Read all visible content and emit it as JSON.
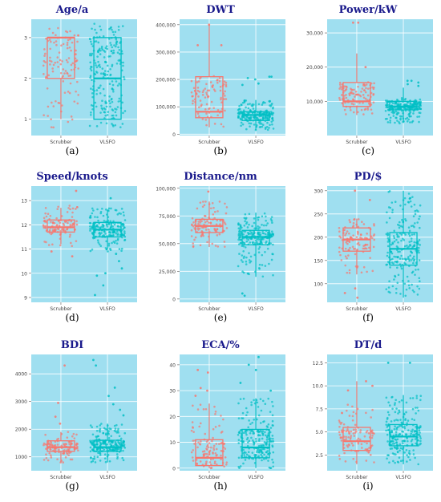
{
  "colors": {
    "panel_bg": "#9fdff0",
    "grid": "#ffffff",
    "scrubber": "#f8766d",
    "vlsfo": "#00bfc4",
    "title": "#1a1a8c"
  },
  "chart_data": [
    {
      "type": "box",
      "title": "Age/a",
      "caption": "(a)",
      "categories": [
        "Scrubber",
        "VLSFO"
      ],
      "ylim": [
        0.6,
        3.45
      ],
      "yticks": [
        1,
        2,
        3
      ],
      "ytick_labels": [
        "1",
        "2",
        "3"
      ],
      "series": [
        {
          "name": "Scrubber",
          "q1": 2.0,
          "median": 3.0,
          "q3": 3.0,
          "min": 1.0,
          "max": 3.0,
          "jitter_range": [
            0.8,
            3.35
          ],
          "n": 110,
          "outliers": []
        },
        {
          "name": "VLSFO",
          "q1": 1.0,
          "median": 2.0,
          "q3": 3.0,
          "min": 1.0,
          "max": 3.0,
          "jitter_range": [
            0.8,
            3.35
          ],
          "n": 220,
          "outliers": []
        }
      ]
    },
    {
      "type": "box",
      "title": "DWT",
      "caption": "(b)",
      "categories": [
        "Scrubber",
        "VLSFO"
      ],
      "ylim": [
        -5000,
        420000
      ],
      "yticks": [
        0,
        100000,
        200000,
        300000,
        400000
      ],
      "ytick_labels": [
        "0",
        "100,000",
        "200,000",
        "300,000",
        "400,000"
      ],
      "series": [
        {
          "name": "Scrubber",
          "q1": 60000,
          "median": 82000,
          "q3": 210000,
          "min": 25000,
          "max": 400000,
          "jitter_range": [
            25000,
            215000
          ],
          "n": 90,
          "outliers": [
            325000,
            325000,
            400000
          ]
        },
        {
          "name": "VLSFO",
          "q1": 50000,
          "median": 70000,
          "q3": 82000,
          "min": 15000,
          "max": 125000,
          "jitter_range": [
            15000,
            125000
          ],
          "n": 200,
          "outliers": [
            180000,
            185000,
            205000,
            210000,
            210000,
            200000
          ]
        }
      ]
    },
    {
      "type": "box",
      "title": "Power/kW",
      "caption": "(c)",
      "categories": [
        "Scrubber",
        "VLSFO"
      ],
      "ylim": [
        0,
        34000
      ],
      "yticks": [
        10000,
        20000,
        30000
      ],
      "ytick_labels": [
        "10,000",
        "20,000",
        "30,000"
      ],
      "series": [
        {
          "name": "Scrubber",
          "q1": 8500,
          "median": 10000,
          "q3": 15500,
          "min": 6000,
          "max": 24000,
          "jitter_range": [
            6000,
            16000
          ],
          "n": 110,
          "outliers": [
            33000,
            33000,
            20000
          ]
        },
        {
          "name": "VLSFO",
          "q1": 7500,
          "median": 8500,
          "q3": 10000,
          "min": 4000,
          "max": 14000,
          "jitter_range": [
            3500,
            11000
          ],
          "n": 220,
          "outliers": [
            15000,
            16000,
            16000,
            14500,
            15500
          ]
        }
      ]
    },
    {
      "type": "box",
      "title": "Speed/knots",
      "caption": "(d)",
      "categories": [
        "Scrubber",
        "VLSFO"
      ],
      "ylim": [
        8.8,
        13.6
      ],
      "yticks": [
        9,
        10,
        11,
        12,
        13
      ],
      "ytick_labels": [
        "9",
        "10",
        "11",
        "12",
        "13"
      ],
      "series": [
        {
          "name": "Scrubber",
          "q1": 11.7,
          "median": 11.9,
          "q3": 12.2,
          "min": 11.2,
          "max": 12.7,
          "jitter_range": [
            11.1,
            12.8
          ],
          "n": 110,
          "outliers": [
            13.4,
            10.9,
            10.7
          ]
        },
        {
          "name": "VLSFO",
          "q1": 11.5,
          "median": 11.8,
          "q3": 12.1,
          "min": 11.0,
          "max": 12.6,
          "jitter_range": [
            10.9,
            12.7
          ],
          "n": 200,
          "outliers": [
            13.1,
            10.5,
            10.2,
            9.9,
            9.5,
            9.1,
            10.8,
            10.0
          ]
        }
      ]
    },
    {
      "type": "box",
      "title": "Distance/nm",
      "caption": "(e)",
      "categories": [
        "Scrubber",
        "VLSFO"
      ],
      "ylim": [
        -3000,
        102000
      ],
      "yticks": [
        0,
        25000,
        50000,
        75000,
        100000
      ],
      "ytick_labels": [
        "0",
        "25,000",
        "50,000",
        "75,000",
        "100,000"
      ],
      "series": [
        {
          "name": "Scrubber",
          "q1": 60000,
          "median": 66000,
          "q3": 72000,
          "min": 47000,
          "max": 88000,
          "jitter_range": [
            47000,
            88000
          ],
          "n": 110,
          "outliers": [
            97000
          ]
        },
        {
          "name": "VLSFO",
          "q1": 49000,
          "median": 56000,
          "q3": 62000,
          "min": 20000,
          "max": 78000,
          "jitter_range": [
            20000,
            78000
          ],
          "n": 220,
          "outliers": [
            5000,
            3000
          ]
        }
      ]
    },
    {
      "type": "box",
      "title": "PD/$",
      "caption": "(f)",
      "categories": [
        "Scrubber",
        "VLSFO"
      ],
      "ylim": [
        60,
        310
      ],
      "yticks": [
        100,
        150,
        200,
        250,
        300
      ],
      "ytick_labels": [
        "100",
        "150",
        "200",
        "250",
        "300"
      ],
      "series": [
        {
          "name": "Scrubber",
          "q1": 170,
          "median": 195,
          "q3": 220,
          "min": 120,
          "max": 240,
          "jitter_range": [
            120,
            240
          ],
          "n": 110,
          "outliers": [
            300,
            280,
            90,
            80,
            70
          ]
        },
        {
          "name": "VLSFO",
          "q1": 140,
          "median": 175,
          "q3": 210,
          "min": 70,
          "max": 300,
          "jitter_range": [
            70,
            300
          ],
          "n": 220,
          "outliers": []
        }
      ]
    },
    {
      "type": "box",
      "title": "BDI",
      "caption": "(g)",
      "categories": [
        "Scrubber",
        "VLSFO"
      ],
      "ylim": [
        500,
        4700
      ],
      "yticks": [
        1000,
        2000,
        3000,
        4000
      ],
      "ytick_labels": [
        "1000",
        "2000",
        "3000",
        "4000"
      ],
      "series": [
        {
          "name": "Scrubber",
          "q1": 1200,
          "median": 1350,
          "q3": 1580,
          "min": 800,
          "max": 1900,
          "jitter_range": [
            800,
            1900
          ],
          "n": 110,
          "outliers": [
            4300,
            2950,
            2450,
            2200
          ]
        },
        {
          "name": "VLSFO",
          "q1": 1200,
          "median": 1350,
          "q3": 1600,
          "min": 800,
          "max": 2200,
          "jitter_range": [
            800,
            2200
          ],
          "n": 220,
          "outliers": [
            4500,
            4300,
            3500,
            3200,
            2900,
            2700,
            2500
          ]
        }
      ]
    },
    {
      "type": "box",
      "title": "ECA/%",
      "caption": "(h)",
      "categories": [
        "Scrubber",
        "VLSFO"
      ],
      "ylim": [
        -1,
        44
      ],
      "yticks": [
        0,
        10,
        20,
        30,
        40
      ],
      "ytick_labels": [
        "0",
        "10",
        "20",
        "30",
        "40"
      ],
      "series": [
        {
          "name": "Scrubber",
          "q1": 1,
          "median": 4,
          "q3": 11,
          "min": 0,
          "max": 25,
          "jitter_range": [
            0,
            25
          ],
          "n": 110,
          "outliers": [
            38,
            37,
            31,
            30,
            28
          ]
        },
        {
          "name": "VLSFO",
          "q1": 4,
          "median": 8,
          "q3": 15,
          "min": 0,
          "max": 27,
          "jitter_range": [
            0,
            27
          ],
          "n": 220,
          "outliers": [
            43,
            40,
            38,
            33,
            30
          ]
        }
      ]
    },
    {
      "type": "box",
      "title": "DT/d",
      "caption": "(i)",
      "categories": [
        "Scrubber",
        "VLSFO"
      ],
      "ylim": [
        0.8,
        13.4
      ],
      "yticks": [
        2.5,
        5.0,
        7.5,
        10.0,
        12.5
      ],
      "ytick_labels": [
        "2.5",
        "5.0",
        "7.5",
        "10.0",
        "12.5"
      ],
      "series": [
        {
          "name": "Scrubber",
          "q1": 3.0,
          "median": 4.0,
          "q3": 5.5,
          "min": 1.5,
          "max": 10.5,
          "jitter_range": [
            1.5,
            8.0
          ],
          "n": 110,
          "outliers": [
            10.5,
            10.0,
            9.5
          ]
        },
        {
          "name": "VLSFO",
          "q1": 3.5,
          "median": 4.5,
          "q3": 5.8,
          "min": 1.5,
          "max": 9.0,
          "jitter_range": [
            1.5,
            9.0
          ],
          "n": 220,
          "outliers": [
            12.5,
            12.5
          ]
        }
      ]
    }
  ]
}
